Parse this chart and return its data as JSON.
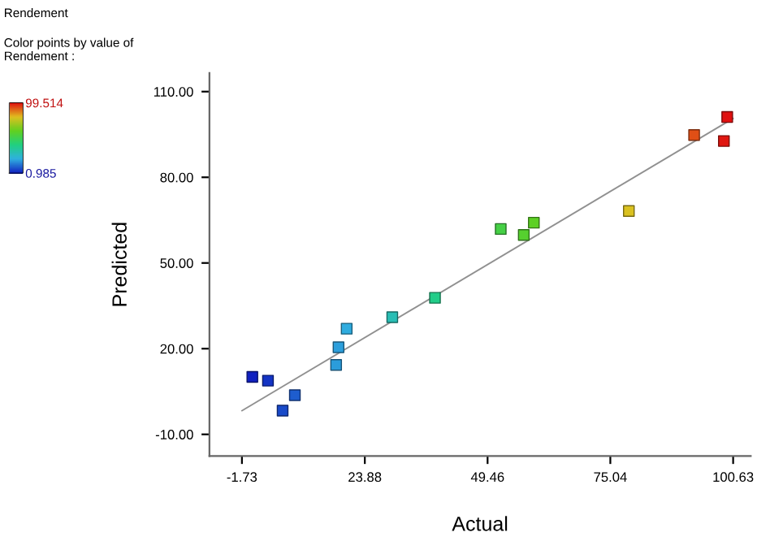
{
  "chart_data": {
    "type": "scatter",
    "xlabel": "Actual",
    "ylabel": "Predicted",
    "annotations": [
      "Rendement",
      "Color points by value of\nRendement :"
    ],
    "series": [
      {
        "marker": "square",
        "x": [
          0.44,
          3.7,
          6.75,
          9.3,
          17.9,
          18.4,
          20.1,
          29.6,
          38.5,
          52.2,
          57.0,
          59.1,
          78.9,
          92.5,
          98.7,
          99.4
        ],
        "values": [
          10.1,
          8.8,
          -1.7,
          3.7,
          14.3,
          20.5,
          27.0,
          31.0,
          37.8,
          61.9,
          59.8,
          64.1,
          68.2,
          94.8,
          92.7,
          101.1
        ],
        "cvalues": [
          0.985,
          3.7,
          6.75,
          9.3,
          17.9,
          18.4,
          20.1,
          29.6,
          38.5,
          52.2,
          57.0,
          59.1,
          78.9,
          92.5,
          98.7,
          99.4
        ],
        "colors": [
          "#1020c0",
          "#1434c4",
          "#194ac9",
          "#1e5dce",
          "#2b9cdb",
          "#2c9fdc",
          "#2facdf",
          "#29beb5",
          "#22cd89",
          "#46d046",
          "#56d02f",
          "#5dd025",
          "#dac120",
          "#e04f16",
          "#e01711",
          "#e01010"
        ]
      },
      {
        "type": "line",
        "x": [
          -1.7,
          100.6
        ],
        "values": [
          -1.7,
          100.6
        ],
        "color": "#909090"
      }
    ],
    "clim": [
      0.985,
      99.514
    ],
    "cticks": [
      {
        "value": 0.985,
        "label": "0.985"
      },
      {
        "value": 99.514,
        "label": "99.514"
      }
    ],
    "xlim": [
      -8.5,
      104.3
    ],
    "ylim": [
      -17.6,
      116.5
    ],
    "xticks": [
      {
        "value": -1.73,
        "label": "-1.73"
      },
      {
        "value": 23.88,
        "label": "23.88"
      },
      {
        "value": 49.46,
        "label": "49.46"
      },
      {
        "value": 75.04,
        "label": "75.04"
      },
      {
        "value": 100.63,
        "label": "100.63"
      }
    ],
    "yticks": [
      {
        "value": -10,
        "label": "-10.00"
      },
      {
        "value": 20,
        "label": "20.00"
      },
      {
        "value": 50,
        "label": "50.00"
      },
      {
        "value": 80,
        "label": "80.00"
      },
      {
        "value": 110,
        "label": "110.00"
      }
    ],
    "grid": false
  }
}
